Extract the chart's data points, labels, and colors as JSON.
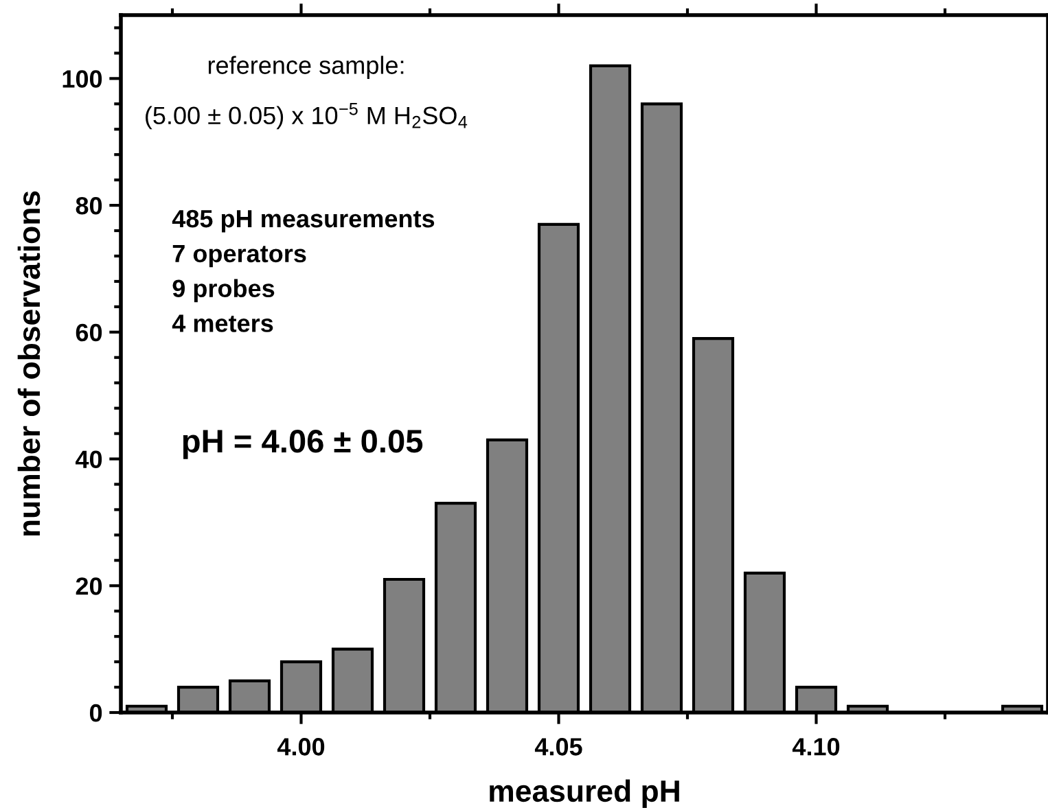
{
  "chart_data": {
    "type": "bar",
    "xlabel": "measured pH",
    "ylabel": "number of observations",
    "x": [
      3.97,
      3.98,
      3.99,
      4.0,
      4.01,
      4.02,
      4.03,
      4.04,
      4.05,
      4.06,
      4.07,
      4.08,
      4.09,
      4.1,
      4.11,
      4.12,
      4.13,
      4.14
    ],
    "values": [
      1,
      4,
      5,
      8,
      10,
      21,
      33,
      43,
      77,
      102,
      96,
      59,
      22,
      4,
      1,
      null,
      null,
      1
    ],
    "color": "#808080",
    "xlim": [
      3.965,
      4.145
    ],
    "xticks": [
      {
        "value": 4.0,
        "label": "4.00"
      },
      {
        "value": 4.05,
        "label": "4.05"
      },
      {
        "value": 4.1,
        "label": "4.10"
      }
    ],
    "ylim": [
      0,
      110
    ],
    "yticks": [
      0,
      20,
      40,
      60,
      80,
      100
    ],
    "grid": false,
    "legend": false,
    "annotations": [
      "reference sample:",
      "(5.00 ± 0.05) x 10$^{−5}$ M H$_{2}$SO$_{4}$",
      "485 pH measurements",
      "7 operators",
      "9 probes",
      "4 meters",
      "pH = 4.06 ± 0.05"
    ]
  }
}
